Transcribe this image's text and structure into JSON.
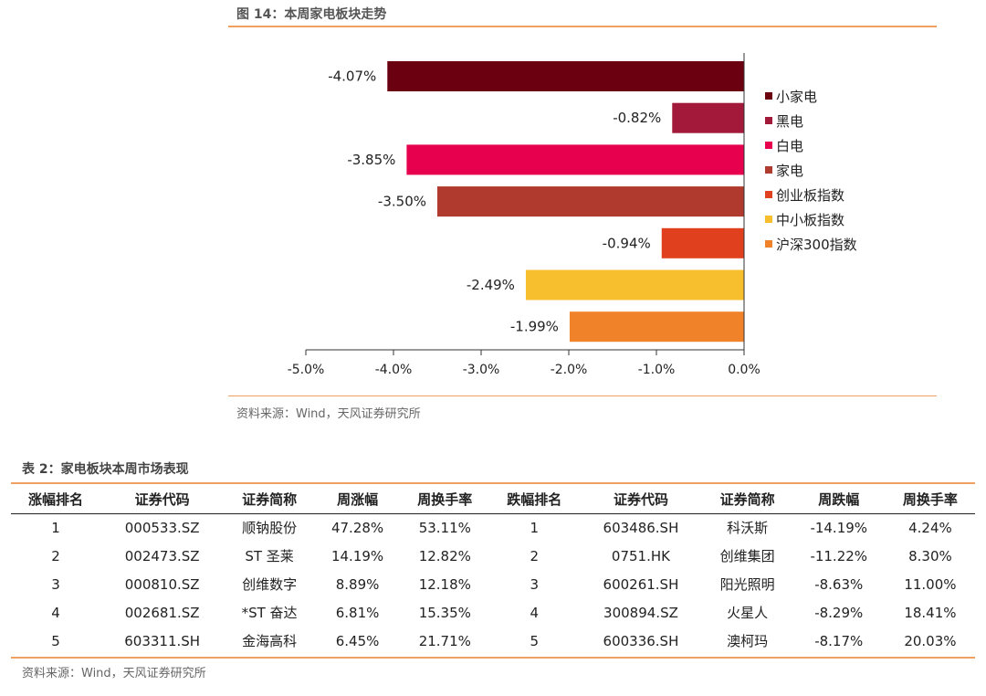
{
  "figure": {
    "title": "图 14：本周家电板块走势",
    "source": "资料来源：Wind，天风证券研究所"
  },
  "chart_data": {
    "type": "bar",
    "orientation": "horizontal",
    "title": "本周家电板块走势",
    "categories": [
      "小家电",
      "黑电",
      "白电",
      "家电",
      "创业板指数",
      "中小板指数",
      "沪深300指数"
    ],
    "values": [
      -4.07,
      -0.82,
      -3.85,
      -3.5,
      -0.94,
      -2.49,
      -1.99
    ],
    "value_labels": [
      "-4.07%",
      "-0.82%",
      "-3.85%",
      "-3.50%",
      "-0.94%",
      "-2.49%",
      "-1.99%"
    ],
    "colors": [
      "#6b0010",
      "#a3193a",
      "#e6004e",
      "#b03a2e",
      "#e0401e",
      "#f7bf2e",
      "#f0822a"
    ],
    "xlim": [
      -5.0,
      0.0
    ],
    "xticks": [
      -5.0,
      -4.0,
      -3.0,
      -2.0,
      -1.0,
      0.0
    ],
    "xtick_labels": [
      "-5.0%",
      "-4.0%",
      "-3.0%",
      "-2.0%",
      "-1.0%",
      "0.0%"
    ],
    "legend": [
      "小家电",
      "黑电",
      "白电",
      "家电",
      "创业板指数",
      "中小板指数",
      "沪深300指数"
    ],
    "legend_position": "right"
  },
  "table": {
    "title": "表 2：家电板块本周市场表现",
    "headers": [
      "涨幅排名",
      "证券代码",
      "证券简称",
      "周涨幅",
      "周换手率",
      "跌幅排名",
      "证券代码",
      "证券简称",
      "周跌幅",
      "周换手率"
    ],
    "rows": [
      [
        "1",
        "000533.SZ",
        "顺钠股份",
        "47.28%",
        "53.11%",
        "1",
        "603486.SH",
        "科沃斯",
        "-14.19%",
        "4.24%"
      ],
      [
        "2",
        "002473.SZ",
        "ST 圣莱",
        "14.19%",
        "12.82%",
        "2",
        "0751.HK",
        "创维集团",
        "-11.22%",
        "8.30%"
      ],
      [
        "3",
        "000810.SZ",
        "创维数字",
        "8.89%",
        "12.18%",
        "3",
        "600261.SH",
        "阳光照明",
        "-8.63%",
        "11.00%"
      ],
      [
        "4",
        "002681.SZ",
        "*ST 奋达",
        "6.81%",
        "15.35%",
        "4",
        "300894.SZ",
        "火星人",
        "-8.29%",
        "18.41%"
      ],
      [
        "5",
        "603311.SH",
        "金海高科",
        "6.45%",
        "21.71%",
        "5",
        "600336.SH",
        "澳柯玛",
        "-8.17%",
        "20.03%"
      ]
    ],
    "source": "资料来源：Wind，天风证券研究所"
  }
}
